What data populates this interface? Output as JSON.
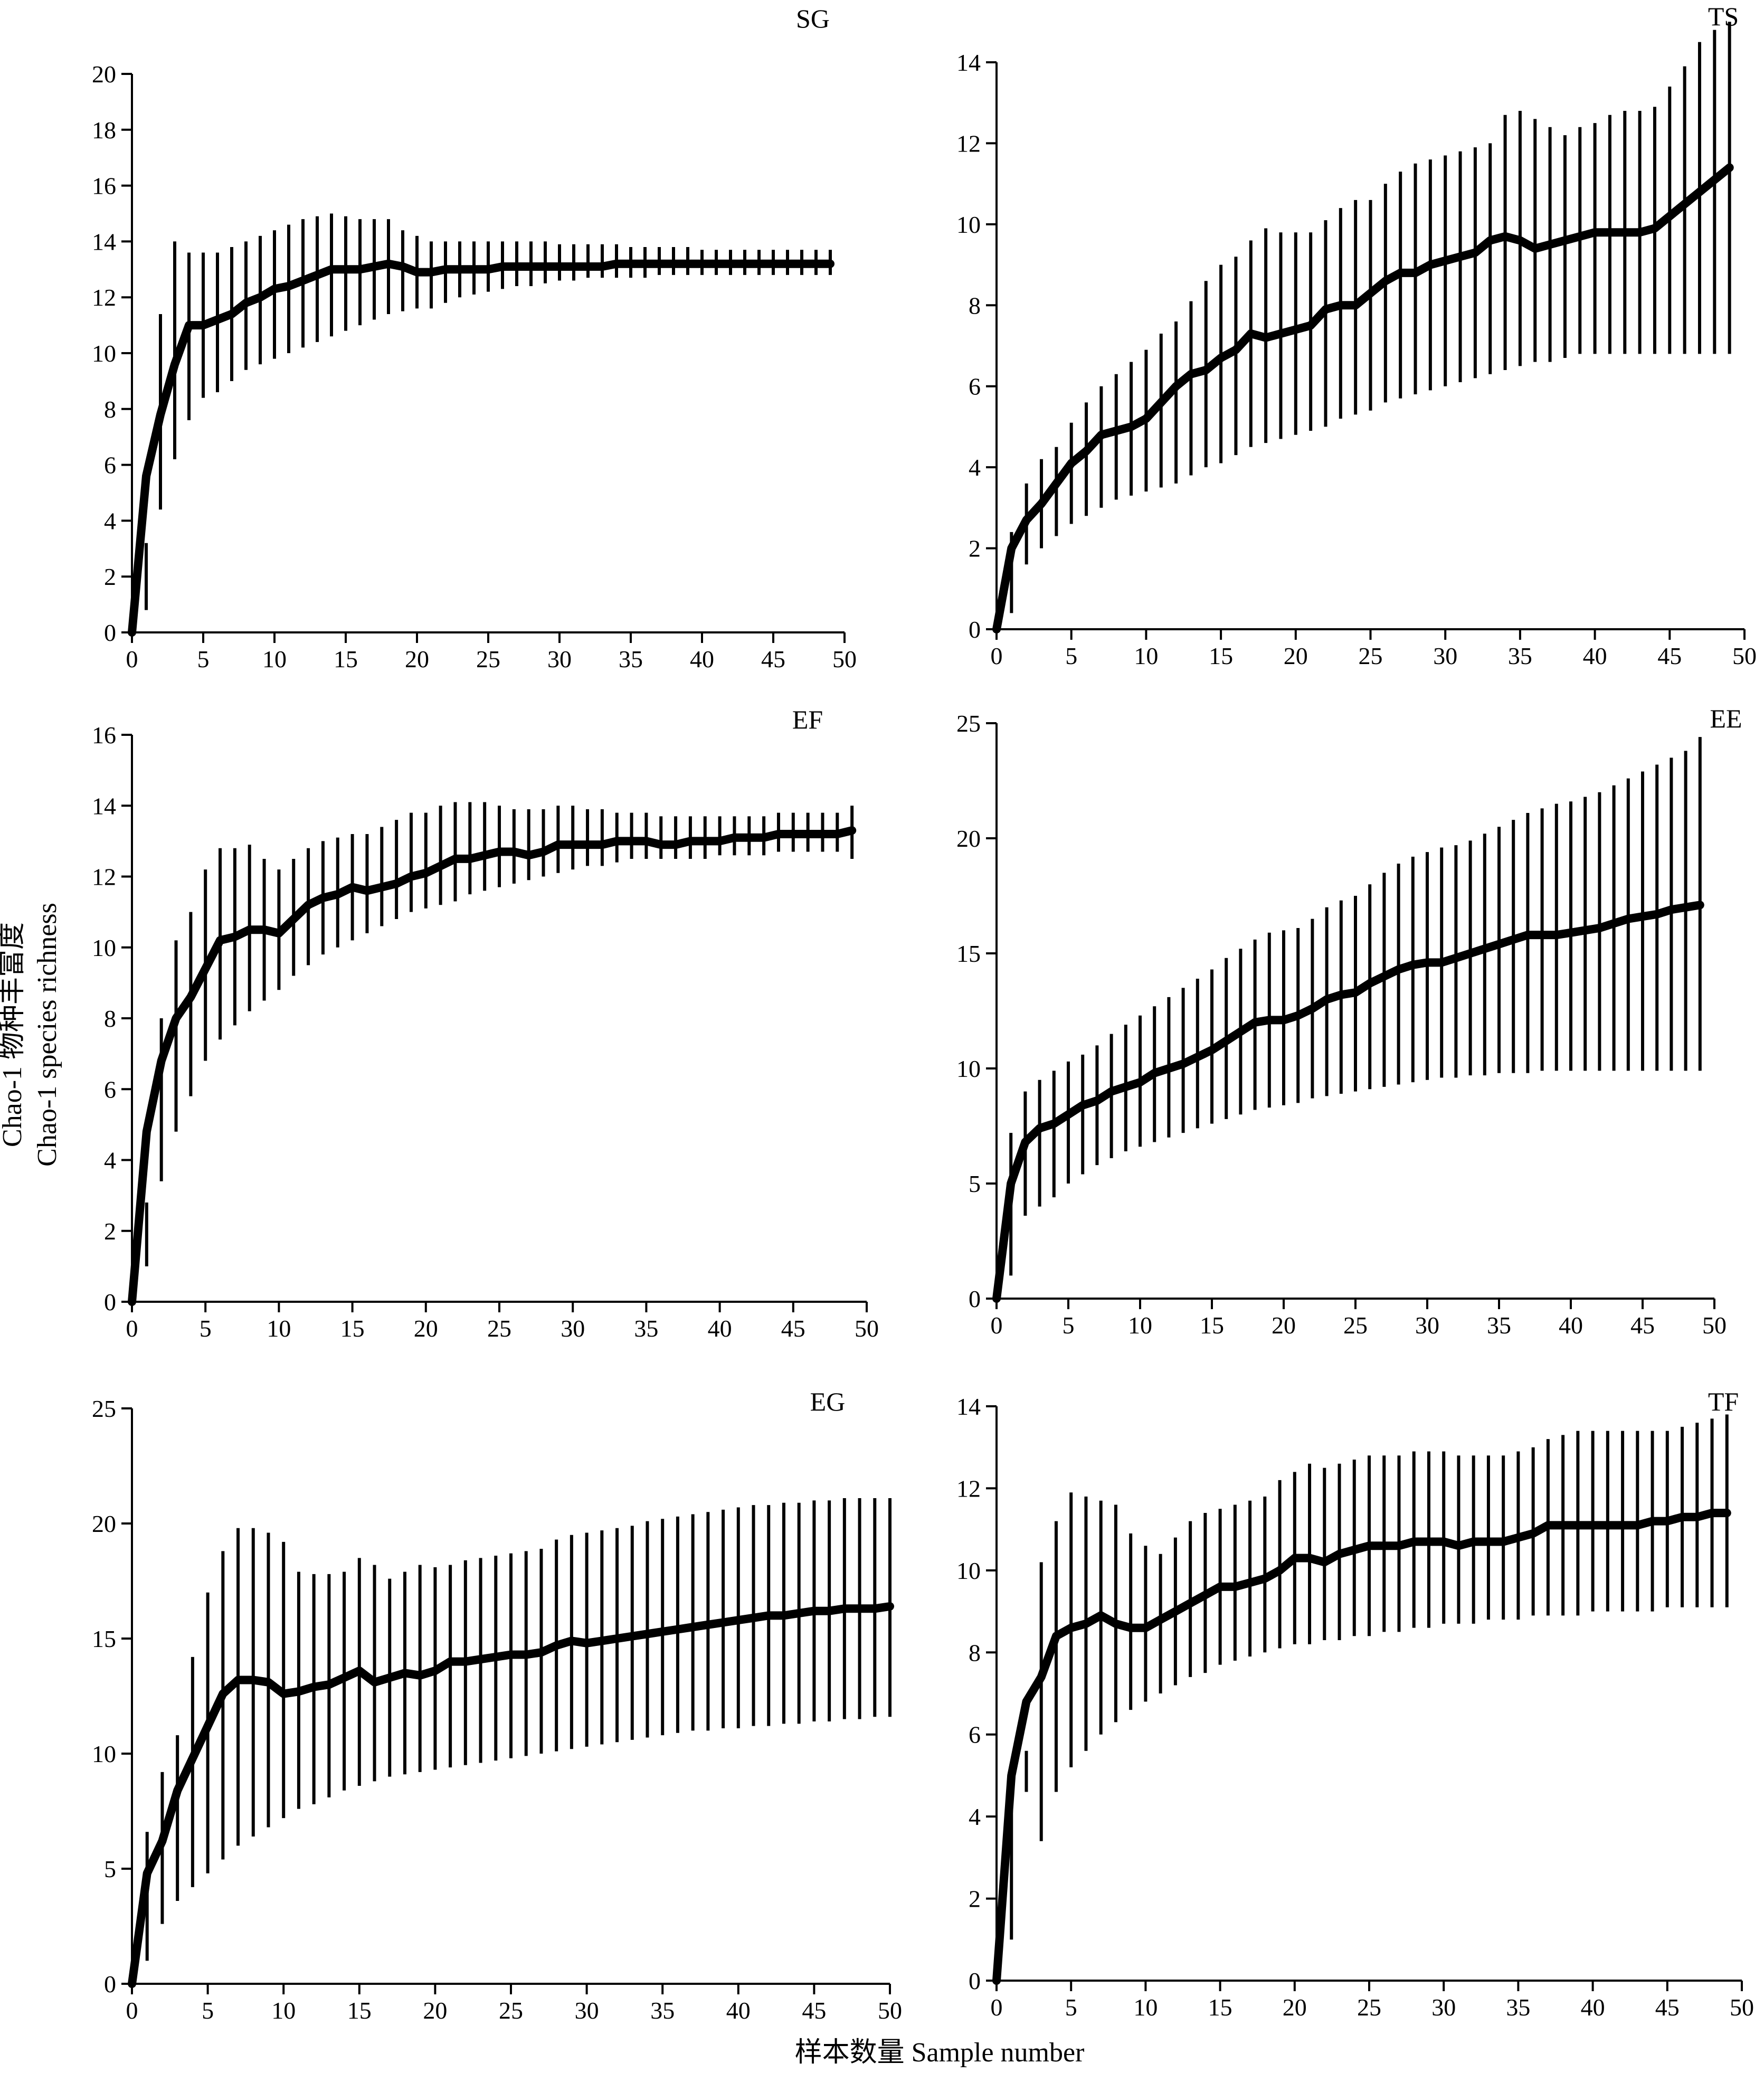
{
  "figure": {
    "ylabel_line1": "Chao-1 物种丰富度",
    "ylabel_line2": "Chao-1 species richness",
    "xlabel": "样本数量 Sample number"
  },
  "chart_data": [
    {
      "type": "line",
      "label": "SG",
      "xlim": [
        0,
        50
      ],
      "ylim": [
        0,
        20
      ],
      "xticks": [
        0,
        5,
        10,
        15,
        20,
        25,
        30,
        35,
        40,
        45,
        50
      ],
      "yticks": [
        0,
        2,
        4,
        6,
        8,
        10,
        12,
        14,
        16,
        18,
        20
      ],
      "x": [
        0,
        1,
        2,
        3,
        4,
        5,
        6,
        7,
        8,
        9,
        10,
        11,
        12,
        13,
        14,
        15,
        16,
        17,
        18,
        19,
        20,
        21,
        22,
        23,
        24,
        25,
        26,
        27,
        28,
        29,
        30,
        31,
        32,
        33,
        34,
        35,
        36,
        37,
        38,
        39,
        40,
        41,
        42,
        43,
        44,
        45,
        46,
        47,
        48,
        49
      ],
      "mean": [
        0.0,
        5.6,
        7.8,
        9.6,
        11.0,
        11.0,
        11.2,
        11.4,
        11.8,
        12.0,
        12.3,
        12.4,
        12.6,
        12.8,
        13.0,
        13.0,
        13.0,
        13.1,
        13.2,
        13.1,
        12.9,
        12.9,
        13.0,
        13.0,
        13.0,
        13.0,
        13.1,
        13.1,
        13.1,
        13.1,
        13.1,
        13.1,
        13.1,
        13.1,
        13.2,
        13.2,
        13.2,
        13.2,
        13.2,
        13.2,
        13.2,
        13.2,
        13.2,
        13.2,
        13.2,
        13.2,
        13.2,
        13.2,
        13.2,
        13.2
      ],
      "lower": [
        0.0,
        0.8,
        4.4,
        6.2,
        7.6,
        8.4,
        8.6,
        9.0,
        9.4,
        9.6,
        9.8,
        10.0,
        10.2,
        10.4,
        10.6,
        10.8,
        11.0,
        11.2,
        11.4,
        11.5,
        11.6,
        11.6,
        11.8,
        12.0,
        12.1,
        12.2,
        12.3,
        12.4,
        12.4,
        12.5,
        12.6,
        12.6,
        12.7,
        12.7,
        12.7,
        12.7,
        12.7,
        12.8,
        12.8,
        12.8,
        12.8,
        12.8,
        12.8,
        12.8,
        12.8,
        12.8,
        12.8,
        12.8,
        12.8,
        12.8
      ],
      "upper": [
        0.0,
        3.2,
        11.4,
        14.0,
        13.6,
        13.6,
        13.6,
        13.8,
        14.0,
        14.2,
        14.4,
        14.6,
        14.8,
        14.9,
        15.0,
        14.9,
        14.8,
        14.8,
        14.8,
        14.4,
        14.2,
        14.0,
        14.0,
        14.0,
        14.0,
        14.0,
        14.0,
        14.0,
        14.0,
        14.0,
        13.9,
        13.9,
        13.9,
        13.9,
        13.9,
        13.8,
        13.8,
        13.8,
        13.8,
        13.8,
        13.7,
        13.7,
        13.7,
        13.7,
        13.7,
        13.7,
        13.7,
        13.7,
        13.7,
        13.7
      ]
    },
    {
      "type": "line",
      "label": "TS",
      "xlim": [
        0,
        50
      ],
      "ylim": [
        0,
        14
      ],
      "xticks": [
        0,
        5,
        10,
        15,
        20,
        25,
        30,
        35,
        40,
        45,
        50
      ],
      "yticks": [
        0,
        2,
        4,
        6,
        8,
        10,
        12,
        14
      ],
      "x": [
        0,
        1,
        2,
        3,
        4,
        5,
        6,
        7,
        8,
        9,
        10,
        11,
        12,
        13,
        14,
        15,
        16,
        17,
        18,
        19,
        20,
        21,
        22,
        23,
        24,
        25,
        26,
        27,
        28,
        29,
        30,
        31,
        32,
        33,
        34,
        35,
        36,
        37,
        38,
        39,
        40,
        41,
        42,
        43,
        44,
        45,
        46,
        47,
        48,
        49
      ],
      "mean": [
        0.0,
        2.0,
        2.7,
        3.1,
        3.6,
        4.1,
        4.4,
        4.8,
        4.9,
        5.0,
        5.2,
        5.6,
        6.0,
        6.3,
        6.4,
        6.7,
        6.9,
        7.3,
        7.2,
        7.3,
        7.4,
        7.5,
        7.9,
        8.0,
        8.0,
        8.3,
        8.6,
        8.8,
        8.8,
        9.0,
        9.1,
        9.2,
        9.3,
        9.6,
        9.7,
        9.6,
        9.4,
        9.5,
        9.6,
        9.7,
        9.8,
        9.8,
        9.8,
        9.8,
        9.9,
        10.2,
        10.5,
        10.8,
        11.1,
        11.4
      ],
      "lower": [
        0.0,
        0.4,
        1.6,
        2.0,
        2.3,
        2.6,
        2.8,
        3.0,
        3.2,
        3.3,
        3.4,
        3.5,
        3.6,
        3.8,
        4.0,
        4.1,
        4.3,
        4.5,
        4.6,
        4.7,
        4.8,
        4.9,
        5.0,
        5.2,
        5.3,
        5.4,
        5.6,
        5.7,
        5.8,
        5.9,
        6.0,
        6.1,
        6.2,
        6.3,
        6.4,
        6.5,
        6.6,
        6.6,
        6.7,
        6.8,
        6.8,
        6.8,
        6.8,
        6.8,
        6.8,
        6.8,
        6.8,
        6.8,
        6.8,
        6.8
      ],
      "upper": [
        0.0,
        2.4,
        3.6,
        4.2,
        4.5,
        5.1,
        5.6,
        6.0,
        6.3,
        6.6,
        6.9,
        7.3,
        7.6,
        8.1,
        8.6,
        9.0,
        9.2,
        9.6,
        9.9,
        9.8,
        9.8,
        9.8,
        10.1,
        10.4,
        10.6,
        10.6,
        11.0,
        11.3,
        11.5,
        11.6,
        11.7,
        11.8,
        11.9,
        12.0,
        12.7,
        12.8,
        12.6,
        12.4,
        12.2,
        12.4,
        12.5,
        12.7,
        12.8,
        12.8,
        12.9,
        13.4,
        13.9,
        14.5,
        14.8,
        15.0
      ]
    },
    {
      "type": "line",
      "label": "EF",
      "xlim": [
        0,
        50
      ],
      "ylim": [
        0,
        16
      ],
      "xticks": [
        0,
        5,
        10,
        15,
        20,
        25,
        30,
        35,
        40,
        45,
        50
      ],
      "yticks": [
        0,
        2,
        4,
        6,
        8,
        10,
        12,
        14,
        16
      ],
      "x": [
        0,
        1,
        2,
        3,
        4,
        5,
        6,
        7,
        8,
        9,
        10,
        11,
        12,
        13,
        14,
        15,
        16,
        17,
        18,
        19,
        20,
        21,
        22,
        23,
        24,
        25,
        26,
        27,
        28,
        29,
        30,
        31,
        32,
        33,
        34,
        35,
        36,
        37,
        38,
        39,
        40,
        41,
        42,
        43,
        44,
        45,
        46,
        47,
        48,
        49
      ],
      "mean": [
        0.0,
        4.8,
        6.8,
        8.0,
        8.6,
        9.4,
        10.2,
        10.3,
        10.5,
        10.5,
        10.4,
        10.8,
        11.2,
        11.4,
        11.5,
        11.7,
        11.6,
        11.7,
        11.8,
        12.0,
        12.1,
        12.3,
        12.5,
        12.5,
        12.6,
        12.7,
        12.7,
        12.6,
        12.7,
        12.9,
        12.9,
        12.9,
        12.9,
        13.0,
        13.0,
        13.0,
        12.9,
        12.9,
        13.0,
        13.0,
        13.0,
        13.1,
        13.1,
        13.1,
        13.2,
        13.2,
        13.2,
        13.2,
        13.2,
        13.3
      ],
      "lower": [
        0.0,
        1.0,
        3.4,
        4.8,
        5.8,
        6.8,
        7.4,
        7.8,
        8.2,
        8.5,
        8.8,
        9.2,
        9.5,
        9.8,
        10.0,
        10.2,
        10.4,
        10.6,
        10.8,
        11.0,
        11.1,
        11.2,
        11.3,
        11.5,
        11.6,
        11.7,
        11.8,
        11.9,
        12.0,
        12.1,
        12.2,
        12.3,
        12.3,
        12.4,
        12.5,
        12.5,
        12.5,
        12.5,
        12.5,
        12.5,
        12.6,
        12.6,
        12.6,
        12.6,
        12.7,
        12.7,
        12.7,
        12.7,
        12.7,
        12.5
      ],
      "upper": [
        0.0,
        2.8,
        8.0,
        10.2,
        11.0,
        12.2,
        12.8,
        12.8,
        12.9,
        12.5,
        12.2,
        12.5,
        12.8,
        13.0,
        13.1,
        13.2,
        13.2,
        13.4,
        13.6,
        13.8,
        13.8,
        14.0,
        14.1,
        14.1,
        14.1,
        14.0,
        13.9,
        13.9,
        13.9,
        14.0,
        14.0,
        13.9,
        13.9,
        13.8,
        13.8,
        13.8,
        13.7,
        13.7,
        13.7,
        13.7,
        13.7,
        13.7,
        13.7,
        13.7,
        13.8,
        13.8,
        13.8,
        13.8,
        13.8,
        14.0
      ]
    },
    {
      "type": "line",
      "label": "EE",
      "xlim": [
        0,
        50
      ],
      "ylim": [
        0,
        25
      ],
      "xticks": [
        0,
        5,
        10,
        15,
        20,
        25,
        30,
        35,
        40,
        45,
        50
      ],
      "yticks": [
        0,
        5,
        10,
        15,
        20,
        25
      ],
      "x": [
        0,
        1,
        2,
        3,
        4,
        5,
        6,
        7,
        8,
        9,
        10,
        11,
        12,
        13,
        14,
        15,
        16,
        17,
        18,
        19,
        20,
        21,
        22,
        23,
        24,
        25,
        26,
        27,
        28,
        29,
        30,
        31,
        32,
        33,
        34,
        35,
        36,
        37,
        38,
        39,
        40,
        41,
        42,
        43,
        44,
        45,
        46,
        47,
        48,
        49
      ],
      "mean": [
        0.0,
        5.0,
        6.8,
        7.4,
        7.6,
        8.0,
        8.4,
        8.6,
        9.0,
        9.2,
        9.4,
        9.8,
        10.0,
        10.2,
        10.5,
        10.8,
        11.2,
        11.6,
        12.0,
        12.1,
        12.1,
        12.3,
        12.6,
        13.0,
        13.2,
        13.3,
        13.7,
        14.0,
        14.3,
        14.5,
        14.6,
        14.6,
        14.8,
        15.0,
        15.2,
        15.4,
        15.6,
        15.8,
        15.8,
        15.8,
        15.9,
        16.0,
        16.1,
        16.3,
        16.5,
        16.6,
        16.7,
        16.9,
        17.0,
        17.1
      ],
      "lower": [
        0.0,
        1.0,
        3.6,
        4.0,
        4.4,
        5.0,
        5.4,
        5.8,
        6.1,
        6.4,
        6.6,
        6.8,
        7.0,
        7.2,
        7.4,
        7.6,
        7.8,
        8.0,
        8.2,
        8.3,
        8.4,
        8.5,
        8.7,
        8.8,
        8.9,
        9.0,
        9.1,
        9.2,
        9.3,
        9.4,
        9.5,
        9.6,
        9.6,
        9.7,
        9.7,
        9.8,
        9.8,
        9.8,
        9.9,
        9.9,
        9.9,
        9.9,
        9.9,
        9.9,
        9.9,
        9.9,
        9.9,
        9.9,
        9.9,
        9.9
      ],
      "upper": [
        0.0,
        7.2,
        9.0,
        9.5,
        9.9,
        10.3,
        10.6,
        11.0,
        11.5,
        11.9,
        12.3,
        12.7,
        13.1,
        13.5,
        13.9,
        14.3,
        14.8,
        15.2,
        15.6,
        15.9,
        16.0,
        16.1,
        16.5,
        17.0,
        17.3,
        17.5,
        18.0,
        18.5,
        18.9,
        19.2,
        19.4,
        19.6,
        19.7,
        19.9,
        20.2,
        20.5,
        20.8,
        21.1,
        21.3,
        21.5,
        21.6,
        21.8,
        22.0,
        22.3,
        22.6,
        22.9,
        23.2,
        23.5,
        23.8,
        24.4
      ]
    },
    {
      "type": "line",
      "label": "EG",
      "xlim": [
        0,
        50
      ],
      "ylim": [
        0,
        25
      ],
      "xticks": [
        0,
        5,
        10,
        15,
        20,
        25,
        30,
        35,
        40,
        45,
        50
      ],
      "yticks": [
        0,
        5,
        10,
        15,
        20,
        25
      ],
      "x": [
        0,
        1,
        2,
        3,
        4,
        5,
        6,
        7,
        8,
        9,
        10,
        11,
        12,
        13,
        14,
        15,
        16,
        17,
        18,
        19,
        20,
        21,
        22,
        23,
        24,
        25,
        26,
        27,
        28,
        29,
        30,
        31,
        32,
        33,
        34,
        35,
        36,
        37,
        38,
        39,
        40,
        41,
        42,
        43,
        44,
        45,
        46,
        47,
        48,
        49,
        50
      ],
      "mean": [
        0.0,
        4.8,
        6.2,
        8.4,
        9.8,
        11.2,
        12.6,
        13.2,
        13.2,
        13.1,
        12.6,
        12.7,
        12.9,
        13.0,
        13.3,
        13.6,
        13.1,
        13.3,
        13.5,
        13.4,
        13.6,
        14.0,
        14.0,
        14.1,
        14.2,
        14.3,
        14.3,
        14.4,
        14.7,
        14.9,
        14.8,
        14.9,
        15.0,
        15.1,
        15.2,
        15.3,
        15.4,
        15.5,
        15.6,
        15.7,
        15.8,
        15.9,
        16.0,
        16.0,
        16.1,
        16.2,
        16.2,
        16.3,
        16.3,
        16.3,
        16.4
      ],
      "lower": [
        0.0,
        1.0,
        2.6,
        3.6,
        4.2,
        4.8,
        5.4,
        6.0,
        6.4,
        6.8,
        7.2,
        7.6,
        7.8,
        8.1,
        8.4,
        8.6,
        8.8,
        9.0,
        9.1,
        9.2,
        9.3,
        9.4,
        9.5,
        9.6,
        9.7,
        9.8,
        9.9,
        10.0,
        10.1,
        10.2,
        10.3,
        10.4,
        10.5,
        10.6,
        10.7,
        10.8,
        10.9,
        11.0,
        11.0,
        11.1,
        11.1,
        11.2,
        11.2,
        11.3,
        11.3,
        11.4,
        11.4,
        11.5,
        11.5,
        11.6,
        11.6
      ],
      "upper": [
        0.0,
        6.6,
        9.2,
        10.8,
        14.2,
        17.0,
        18.8,
        19.8,
        19.8,
        19.6,
        19.2,
        17.9,
        17.8,
        17.8,
        17.9,
        18.5,
        18.2,
        17.6,
        17.9,
        18.2,
        18.1,
        18.2,
        18.4,
        18.5,
        18.6,
        18.7,
        18.8,
        18.9,
        19.3,
        19.5,
        19.6,
        19.7,
        19.8,
        19.9,
        20.1,
        20.2,
        20.3,
        20.4,
        20.5,
        20.6,
        20.7,
        20.8,
        20.8,
        20.9,
        20.9,
        21.0,
        21.0,
        21.1,
        21.1,
        21.1,
        21.1
      ]
    },
    {
      "type": "line",
      "label": "TF",
      "xlim": [
        0,
        50
      ],
      "ylim": [
        0,
        14
      ],
      "xticks": [
        0,
        5,
        10,
        15,
        20,
        25,
        30,
        35,
        40,
        45,
        50
      ],
      "yticks": [
        0,
        2,
        4,
        6,
        8,
        10,
        12,
        14
      ],
      "x": [
        0,
        1,
        2,
        3,
        4,
        5,
        6,
        7,
        8,
        9,
        10,
        11,
        12,
        13,
        14,
        15,
        16,
        17,
        18,
        19,
        20,
        21,
        22,
        23,
        24,
        25,
        26,
        27,
        28,
        29,
        30,
        31,
        32,
        33,
        34,
        35,
        36,
        37,
        38,
        39,
        40,
        41,
        42,
        43,
        44,
        45,
        46,
        47,
        48,
        49
      ],
      "mean": [
        0.0,
        5.0,
        6.8,
        7.4,
        8.4,
        8.6,
        8.7,
        8.9,
        8.7,
        8.6,
        8.6,
        8.8,
        9.0,
        9.2,
        9.4,
        9.6,
        9.6,
        9.7,
        9.8,
        10.0,
        10.3,
        10.3,
        10.2,
        10.4,
        10.5,
        10.6,
        10.6,
        10.6,
        10.7,
        10.7,
        10.7,
        10.6,
        10.7,
        10.7,
        10.7,
        10.8,
        10.9,
        11.1,
        11.1,
        11.1,
        11.1,
        11.1,
        11.1,
        11.1,
        11.2,
        11.2,
        11.3,
        11.3,
        11.4,
        11.4
      ],
      "lower": [
        0.0,
        1.0,
        4.6,
        3.4,
        4.6,
        5.2,
        5.6,
        6.0,
        6.3,
        6.6,
        6.8,
        7.0,
        7.2,
        7.4,
        7.5,
        7.7,
        7.8,
        7.9,
        8.0,
        8.1,
        8.2,
        8.2,
        8.3,
        8.3,
        8.4,
        8.4,
        8.5,
        8.5,
        8.6,
        8.6,
        8.7,
        8.7,
        8.7,
        8.8,
        8.8,
        8.8,
        8.9,
        8.9,
        8.9,
        8.9,
        9.0,
        9.0,
        9.0,
        9.0,
        9.0,
        9.1,
        9.1,
        9.1,
        9.1,
        9.1
      ],
      "upper": [
        0.0,
        5.0,
        5.6,
        10.2,
        11.2,
        11.9,
        11.8,
        11.7,
        11.6,
        10.9,
        10.6,
        10.4,
        10.8,
        11.2,
        11.4,
        11.5,
        11.6,
        11.7,
        11.8,
        12.2,
        12.4,
        12.6,
        12.5,
        12.6,
        12.7,
        12.8,
        12.8,
        12.8,
        12.9,
        12.9,
        12.9,
        12.8,
        12.8,
        12.8,
        12.8,
        12.9,
        13.0,
        13.2,
        13.3,
        13.4,
        13.4,
        13.4,
        13.4,
        13.4,
        13.4,
        13.4,
        13.5,
        13.6,
        13.7,
        13.8
      ]
    }
  ]
}
